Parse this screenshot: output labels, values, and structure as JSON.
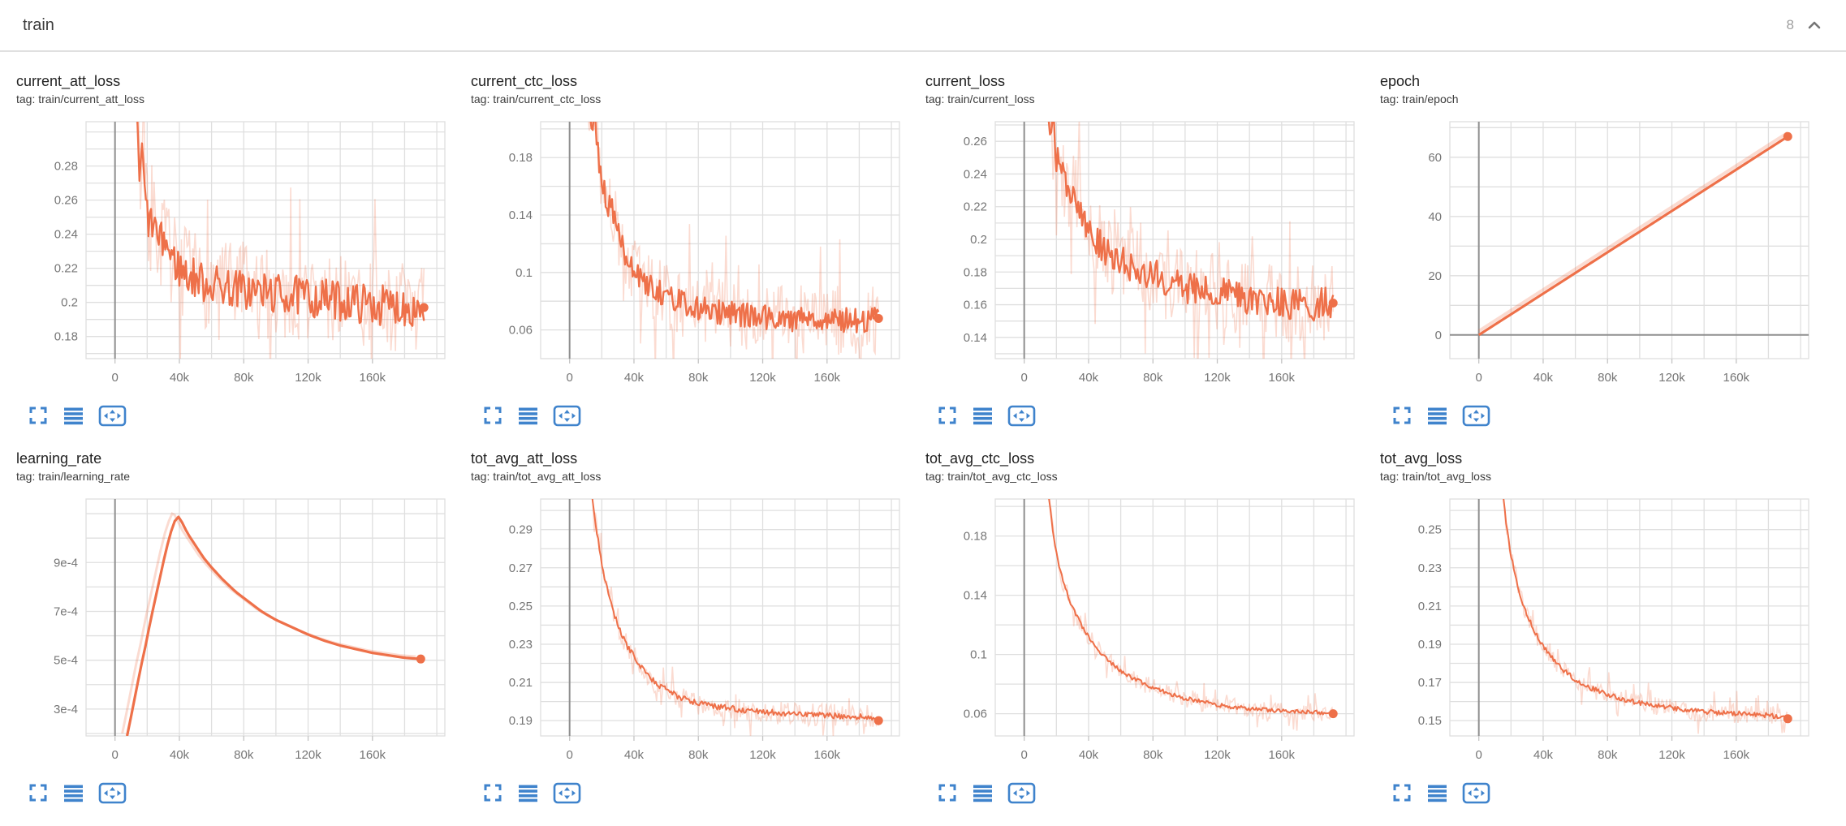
{
  "header": {
    "title": "train",
    "count": "8"
  },
  "colors": {
    "line": "#ee7049",
    "line_faint": "rgba(238,112,73,0.25)",
    "grid": "#dfdfdf",
    "axis_zero": "#8f8f8f",
    "tick_text": "#767676",
    "icon_blue": "#3f83cc",
    "divider": "#e0e0e0"
  },
  "toolbar_icons": [
    "fullscreen-icon",
    "log-scale-icon",
    "fit-domain-icon"
  ],
  "chart_data": {
    "type": "line",
    "x_axis": {
      "lim": [
        -18000,
        205000
      ],
      "grid_step": 20000,
      "ticks": [
        0,
        40000,
        80000,
        120000,
        160000
      ],
      "labels": [
        "0",
        "40k",
        "80k",
        "120k",
        "160k"
      ]
    },
    "charts": [
      {
        "title": "current_att_loss",
        "tag": "tag: train/current_att_loss",
        "ylim": [
          0.167,
          0.306
        ],
        "y_minor": 0.01,
        "y_ticks": [
          0.18,
          0.2,
          0.22,
          0.24,
          0.26,
          0.28
        ],
        "y_tick_labels": [
          "0.18",
          "0.2",
          "0.22",
          "0.24",
          "0.26",
          "0.28"
        ],
        "trend": [
          [
            8000,
            0.46
          ],
          [
            12000,
            0.34
          ],
          [
            14000,
            0.295
          ],
          [
            15500,
            0.27
          ],
          [
            17000,
            0.29
          ],
          [
            18500,
            0.262
          ],
          [
            20000,
            0.252
          ],
          [
            22000,
            0.244
          ],
          [
            24000,
            0.248
          ],
          [
            26000,
            0.238
          ],
          [
            28000,
            0.234
          ],
          [
            31000,
            0.238
          ],
          [
            34000,
            0.228
          ],
          [
            37000,
            0.224
          ],
          [
            40000,
            0.22
          ],
          [
            45000,
            0.216
          ],
          [
            50000,
            0.214
          ],
          [
            55000,
            0.212
          ],
          [
            60000,
            0.211
          ],
          [
            70000,
            0.209
          ],
          [
            80000,
            0.207
          ],
          [
            90000,
            0.206
          ],
          [
            100000,
            0.205
          ],
          [
            110000,
            0.204
          ],
          [
            120000,
            0.203
          ],
          [
            130000,
            0.202
          ],
          [
            140000,
            0.201
          ],
          [
            150000,
            0.2
          ],
          [
            160000,
            0.199
          ],
          [
            170000,
            0.198
          ],
          [
            180000,
            0.198
          ],
          [
            186000,
            0.197
          ],
          [
            192000,
            0.197
          ]
        ],
        "jitter": 0.012,
        "raw_jitter": 0.027,
        "line_width": 2.4,
        "end_dot": [
          192000,
          0.197
        ]
      },
      {
        "title": "current_ctc_loss",
        "tag": "tag: train/current_ctc_loss",
        "ylim": [
          0.04,
          0.205
        ],
        "y_minor": 0.02,
        "y_ticks": [
          0.06,
          0.1,
          0.14,
          0.18
        ],
        "y_tick_labels": [
          "0.06",
          "0.1",
          "0.14",
          "0.18"
        ],
        "trend": [
          [
            8000,
            0.3
          ],
          [
            10000,
            0.24
          ],
          [
            12000,
            0.215
          ],
          [
            14000,
            0.205
          ],
          [
            15500,
            0.215
          ],
          [
            17000,
            0.19
          ],
          [
            20000,
            0.165
          ],
          [
            22000,
            0.155
          ],
          [
            24000,
            0.148
          ],
          [
            26000,
            0.152
          ],
          [
            28000,
            0.135
          ],
          [
            30000,
            0.128
          ],
          [
            33000,
            0.118
          ],
          [
            36000,
            0.11
          ],
          [
            40000,
            0.103
          ],
          [
            45000,
            0.096
          ],
          [
            50000,
            0.091
          ],
          [
            55000,
            0.087
          ],
          [
            60000,
            0.084
          ],
          [
            70000,
            0.079
          ],
          [
            80000,
            0.076
          ],
          [
            90000,
            0.073
          ],
          [
            100000,
            0.071
          ],
          [
            110000,
            0.07
          ],
          [
            120000,
            0.069
          ],
          [
            130000,
            0.068
          ],
          [
            140000,
            0.068
          ],
          [
            150000,
            0.067
          ],
          [
            160000,
            0.067
          ],
          [
            170000,
            0.067
          ],
          [
            180000,
            0.067
          ],
          [
            192000,
            0.068
          ]
        ],
        "jitter": 0.009,
        "raw_jitter": 0.024,
        "line_width": 2.4,
        "end_dot": [
          192000,
          0.068
        ]
      },
      {
        "title": "current_loss",
        "tag": "tag: train/current_loss",
        "ylim": [
          0.127,
          0.272
        ],
        "y_minor": 0.01,
        "y_ticks": [
          0.14,
          0.16,
          0.18,
          0.2,
          0.22,
          0.24,
          0.26
        ],
        "y_tick_labels": [
          "0.14",
          "0.16",
          "0.18",
          "0.2",
          "0.22",
          "0.24",
          "0.26"
        ],
        "trend": [
          [
            8000,
            0.44
          ],
          [
            12000,
            0.32
          ],
          [
            14000,
            0.285
          ],
          [
            16000,
            0.265
          ],
          [
            18000,
            0.272
          ],
          [
            20000,
            0.25
          ],
          [
            22000,
            0.24
          ],
          [
            24000,
            0.243
          ],
          [
            26000,
            0.232
          ],
          [
            28000,
            0.226
          ],
          [
            31000,
            0.229
          ],
          [
            34000,
            0.218
          ],
          [
            37000,
            0.212
          ],
          [
            40000,
            0.206
          ],
          [
            45000,
            0.199
          ],
          [
            50000,
            0.194
          ],
          [
            55000,
            0.19
          ],
          [
            60000,
            0.187
          ],
          [
            70000,
            0.182
          ],
          [
            80000,
            0.178
          ],
          [
            90000,
            0.174
          ],
          [
            100000,
            0.171
          ],
          [
            110000,
            0.169
          ],
          [
            120000,
            0.167
          ],
          [
            130000,
            0.165
          ],
          [
            140000,
            0.163
          ],
          [
            150000,
            0.162
          ],
          [
            160000,
            0.161
          ],
          [
            170000,
            0.16
          ],
          [
            180000,
            0.16
          ],
          [
            192000,
            0.161
          ]
        ],
        "jitter": 0.01,
        "raw_jitter": 0.024,
        "line_width": 2.4,
        "end_dot": [
          192000,
          0.161
        ]
      },
      {
        "title": "epoch",
        "tag": "tag: train/epoch",
        "ylim": [
          -8,
          72
        ],
        "y_minor": 10,
        "y_ticks": [
          0,
          20,
          40,
          60
        ],
        "y_tick_labels": [
          "0",
          "20",
          "40",
          "60"
        ],
        "zero_y_line": true,
        "trend": [
          [
            0,
            0
          ],
          [
            192000,
            67
          ]
        ],
        "jitter": 0,
        "raw_jitter": 0,
        "raw_shift": [
          0,
          1.3
        ],
        "raw_width": 4,
        "line_width": 3.2,
        "end_dot": [
          192000,
          67
        ]
      },
      {
        "title": "learning_rate",
        "tag": "tag: train/learning_rate",
        "ylim": [
          0.00019,
          0.00116
        ],
        "y_minor": 0.0001,
        "y_ticks": [
          0.0003,
          0.0005,
          0.0007,
          0.0009
        ],
        "y_tick_labels": [
          "3e-4",
          "5e-4",
          "7e-4",
          "9e-4"
        ],
        "trend": [
          [
            7500,
            0.00019
          ],
          [
            10000,
            0.00027
          ],
          [
            13000,
            0.00037
          ],
          [
            16000,
            0.00047
          ],
          [
            19000,
            0.00056
          ],
          [
            22000,
            0.00066
          ],
          [
            25000,
            0.00075
          ],
          [
            28000,
            0.00084
          ],
          [
            31000,
            0.00093
          ],
          [
            34000,
            0.00101
          ],
          [
            36500,
            0.00106
          ],
          [
            38500,
            0.00109
          ],
          [
            40000,
            0.001085
          ],
          [
            42000,
            0.00106
          ],
          [
            45000,
            0.00102
          ],
          [
            50000,
            0.00097
          ],
          [
            55000,
            0.00092
          ],
          [
            60000,
            0.00088
          ],
          [
            67000,
            0.00083
          ],
          [
            75000,
            0.00078
          ],
          [
            83000,
            0.00074
          ],
          [
            91000,
            0.0007
          ],
          [
            100000,
            0.000665
          ],
          [
            110000,
            0.000635
          ],
          [
            120000,
            0.000605
          ],
          [
            130000,
            0.00058
          ],
          [
            140000,
            0.00056
          ],
          [
            150000,
            0.000545
          ],
          [
            160000,
            0.00053
          ],
          [
            170000,
            0.00052
          ],
          [
            180000,
            0.00051
          ],
          [
            190000,
            0.000505
          ]
        ],
        "jitter": 0,
        "raw_jitter": 0,
        "raw_shift": [
          -3000,
          1e-05
        ],
        "raw_width": 3,
        "line_width": 3.2,
        "end_dot": [
          190000,
          0.000505
        ]
      },
      {
        "title": "tot_avg_att_loss",
        "tag": "tag: train/tot_avg_att_loss",
        "ylim": [
          0.182,
          0.306
        ],
        "y_minor": 0.01,
        "y_ticks": [
          0.19,
          0.21,
          0.23,
          0.25,
          0.27,
          0.29
        ],
        "y_tick_labels": [
          "0.19",
          "0.21",
          "0.23",
          "0.25",
          "0.27",
          "0.29"
        ],
        "trend": [
          [
            9000,
            0.4
          ],
          [
            12000,
            0.325
          ],
          [
            15000,
            0.3
          ],
          [
            18000,
            0.283
          ],
          [
            21000,
            0.268
          ],
          [
            24000,
            0.256
          ],
          [
            27000,
            0.247
          ],
          [
            30000,
            0.24
          ],
          [
            33000,
            0.234
          ],
          [
            36000,
            0.229
          ],
          [
            40000,
            0.2235
          ],
          [
            45000,
            0.2175
          ],
          [
            50000,
            0.2125
          ],
          [
            55000,
            0.209
          ],
          [
            60000,
            0.206
          ],
          [
            70000,
            0.2015
          ],
          [
            80000,
            0.199
          ],
          [
            90000,
            0.1975
          ],
          [
            100000,
            0.1965
          ],
          [
            110000,
            0.1955
          ],
          [
            120000,
            0.1948
          ],
          [
            130000,
            0.194
          ],
          [
            140000,
            0.1935
          ],
          [
            150000,
            0.1932
          ],
          [
            160000,
            0.1928
          ],
          [
            170000,
            0.1925
          ],
          [
            180000,
            0.192
          ],
          [
            186000,
            0.1915
          ],
          [
            192000,
            0.19
          ]
        ],
        "jitter": 0.0016,
        "raw_jitter": 0.006,
        "line_width": 2,
        "end_dot": [
          192000,
          0.19
        ]
      },
      {
        "title": "tot_avg_ctc_loss",
        "tag": "tag: train/tot_avg_ctc_loss",
        "ylim": [
          0.045,
          0.205
        ],
        "y_minor": 0.02,
        "y_ticks": [
          0.06,
          0.1,
          0.14,
          0.18
        ],
        "y_tick_labels": [
          "0.06",
          "0.1",
          "0.14",
          "0.18"
        ],
        "trend": [
          [
            9000,
            0.36
          ],
          [
            11000,
            0.28
          ],
          [
            13000,
            0.235
          ],
          [
            15000,
            0.21
          ],
          [
            17000,
            0.19
          ],
          [
            19000,
            0.175
          ],
          [
            21000,
            0.163
          ],
          [
            24000,
            0.15
          ],
          [
            27000,
            0.14
          ],
          [
            30000,
            0.132
          ],
          [
            33000,
            0.125
          ],
          [
            36000,
            0.119
          ],
          [
            40000,
            0.112
          ],
          [
            44000,
            0.106
          ],
          [
            48000,
            0.101
          ],
          [
            52000,
            0.0965
          ],
          [
            56000,
            0.0925
          ],
          [
            60000,
            0.089
          ],
          [
            65000,
            0.0855
          ],
          [
            70000,
            0.0825
          ],
          [
            75000,
            0.08
          ],
          [
            80000,
            0.0775
          ],
          [
            88000,
            0.0745
          ],
          [
            96000,
            0.0715
          ],
          [
            104000,
            0.0695
          ],
          [
            112000,
            0.0675
          ],
          [
            120000,
            0.066
          ],
          [
            130000,
            0.0645
          ],
          [
            140000,
            0.0635
          ],
          [
            150000,
            0.0625
          ],
          [
            160000,
            0.062
          ],
          [
            170000,
            0.0615
          ],
          [
            180000,
            0.061
          ],
          [
            192000,
            0.06
          ]
        ],
        "jitter": 0.0014,
        "raw_jitter": 0.006,
        "line_width": 2,
        "end_dot": [
          192000,
          0.06
        ]
      },
      {
        "title": "tot_avg_loss",
        "tag": "tag: train/tot_avg_loss",
        "ylim": [
          0.142,
          0.266
        ],
        "y_minor": 0.01,
        "y_ticks": [
          0.15,
          0.17,
          0.19,
          0.21,
          0.23,
          0.25
        ],
        "y_tick_labels": [
          "0.15",
          "0.17",
          "0.19",
          "0.21",
          "0.23",
          "0.25"
        ],
        "trend": [
          [
            9000,
            0.38
          ],
          [
            11000,
            0.32
          ],
          [
            13000,
            0.29
          ],
          [
            15000,
            0.27
          ],
          [
            17000,
            0.254
          ],
          [
            19000,
            0.242
          ],
          [
            21000,
            0.2325
          ],
          [
            24000,
            0.221
          ],
          [
            27000,
            0.2125
          ],
          [
            30000,
            0.2055
          ],
          [
            33000,
            0.1995
          ],
          [
            36000,
            0.1945
          ],
          [
            40000,
            0.189
          ],
          [
            44000,
            0.1845
          ],
          [
            48000,
            0.1805
          ],
          [
            52000,
            0.177
          ],
          [
            56000,
            0.174
          ],
          [
            60000,
            0.1715
          ],
          [
            65000,
            0.169
          ],
          [
            70000,
            0.167
          ],
          [
            75000,
            0.1652
          ],
          [
            80000,
            0.1638
          ],
          [
            88000,
            0.1618
          ],
          [
            96000,
            0.16
          ],
          [
            104000,
            0.1588
          ],
          [
            112000,
            0.1576
          ],
          [
            120000,
            0.1566
          ],
          [
            130000,
            0.1556
          ],
          [
            140000,
            0.1548
          ],
          [
            150000,
            0.1542
          ],
          [
            160000,
            0.1537
          ],
          [
            170000,
            0.1532
          ],
          [
            180000,
            0.1528
          ],
          [
            186000,
            0.1522
          ],
          [
            192000,
            0.151
          ]
        ],
        "jitter": 0.0013,
        "raw_jitter": 0.005,
        "line_width": 2,
        "end_dot": [
          192000,
          0.151
        ]
      }
    ]
  }
}
